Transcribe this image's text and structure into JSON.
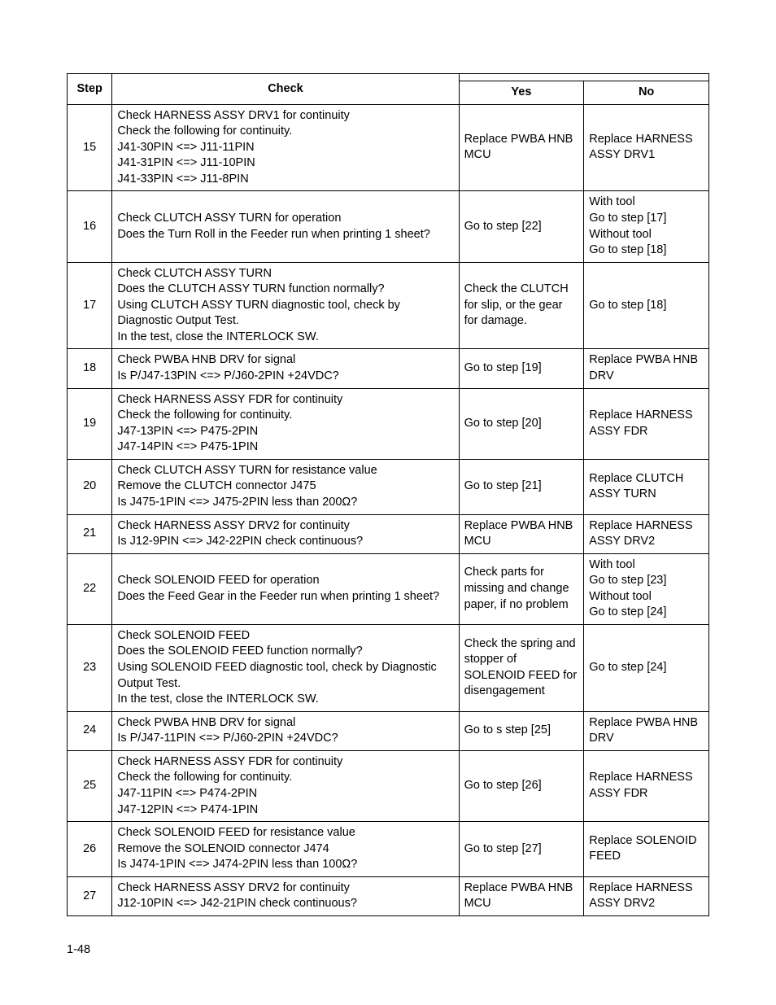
{
  "headers": {
    "step": "Step",
    "check": "Check",
    "yes": "Yes",
    "no": "No"
  },
  "rows": [
    {
      "step": "15",
      "check": "Check HARNESS ASSY DRV1 for continuity\nCheck the following for continuity.\nJ41-30PIN <=> J11-11PIN\nJ41-31PIN <=> J11-10PIN\nJ41-33PIN <=> J11-8PIN",
      "yes": "Replace PWBA HNB MCU",
      "no": "Replace HARNESS ASSY DRV1"
    },
    {
      "step": "16",
      "check": "Check CLUTCH ASSY TURN for operation\nDoes the Turn Roll in the Feeder run when printing 1 sheet?",
      "yes": "Go to step [22]",
      "no": "With tool\nGo to step [17]\nWithout tool\nGo to step [18]"
    },
    {
      "step": "17",
      "check": "Check CLUTCH ASSY TURN\nDoes the CLUTCH ASSY TURN function normally?\nUsing CLUTCH ASSY TURN diagnostic tool, check by Diagnostic Output Test.\nIn the test, close the INTERLOCK SW.",
      "yes": "Check the CLUTCH for slip, or the gear for damage.",
      "no": "Go to step [18]"
    },
    {
      "step": "18",
      "check": "Check PWBA HNB DRV for signal\nIs P/J47-13PIN <=> P/J60-2PIN +24VDC?",
      "yes": "Go to step [19]",
      "no": "Replace PWBA HNB DRV"
    },
    {
      "step": "19",
      "check": "Check HARNESS ASSY FDR for continuity\nCheck the following for continuity.\nJ47-13PIN <=> P475-2PIN\nJ47-14PIN <=> P475-1PIN",
      "yes": "Go to step [20]",
      "no": "Replace HARNESS ASSY FDR"
    },
    {
      "step": "20",
      "check": "Check CLUTCH ASSY TURN for resistance value\nRemove the CLUTCH connector J475\nIs J475-1PIN <=> J475-2PIN less than 200Ω?",
      "yes": "Go to step [21]",
      "no": "Replace CLUTCH ASSY TURN"
    },
    {
      "step": "21",
      "check": "Check HARNESS ASSY DRV2 for continuity\nIs J12-9PIN <=> J42-22PIN check continuous?",
      "yes": "Replace PWBA HNB MCU",
      "no": "Replace HARNESS ASSY DRV2"
    },
    {
      "step": "22",
      "check": "Check SOLENOID FEED for operation\nDoes the Feed Gear in the Feeder run when printing 1 sheet?",
      "yes": "Check parts for missing and change paper, if no problem",
      "no": "With tool\nGo to step [23]\nWithout tool\nGo to step [24]"
    },
    {
      "step": "23",
      "check": "Check SOLENOID FEED\nDoes the SOLENOID FEED function normally?\nUsing SOLENOID FEED diagnostic tool, check by Diagnostic Output Test.\nIn the test, close the INTERLOCK SW.",
      "yes": "Check the spring and stopper of SOLENOID FEED for disengagement",
      "no": "Go to step [24]"
    },
    {
      "step": "24",
      "check": "Check PWBA HNB DRV for signal\nIs P/J47-11PIN <=> P/J60-2PIN +24VDC?",
      "yes": "Go to s step [25]",
      "no": "Replace PWBA HNB DRV"
    },
    {
      "step": "25",
      "check": "Check HARNESS ASSY FDR for continuity\nCheck the following for continuity.\nJ47-11PIN <=> P474-2PIN\nJ47-12PIN <=> P474-1PIN",
      "yes": "Go to step [26]",
      "no": "Replace HARNESS ASSY FDR"
    },
    {
      "step": "26",
      "check": "Check SOLENOID FEED for resistance value\nRemove the SOLENOID connector J474\nIs J474-1PIN <=> J474-2PIN less than 100Ω?",
      "yes": "Go to step [27]",
      "no": "Replace SOLENOID FEED"
    },
    {
      "step": "27",
      "check": "Check HARNESS ASSY DRV2 for continuity\nJ12-10PIN <=> J42-21PIN check continuous?",
      "yes": "Replace PWBA HNB MCU",
      "no": "Replace HARNESS ASSY DRV2"
    }
  ],
  "page_number": "1-48"
}
